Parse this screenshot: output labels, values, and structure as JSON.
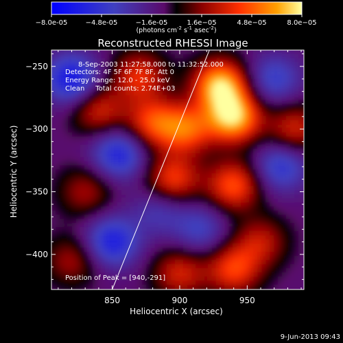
{
  "chart_data": {
    "type": "heatmap",
    "title": "Reconstructed RHESSI Image",
    "xlabel": "Heliocentric X (arcsec)",
    "ylabel": "Heliocentric Y (arcsec)",
    "xlim": [
      805,
      992
    ],
    "ylim": [
      -428,
      -237
    ],
    "xticks": [
      850,
      900,
      950
    ],
    "yticks": [
      -250,
      -300,
      -350,
      -400
    ],
    "colorbar": {
      "min": -8e-05,
      "max": 8e-05,
      "ticks": [
        "-8.0e-05",
        "-4.8e-05",
        "-1.6e-05",
        "1.6e-05",
        "4.8e-05",
        "8.0e-05"
      ],
      "unit_label": "(photons cm-2 s-1 asec-2)"
    },
    "annotations": [
      "8-Sep-2003 11:27:58.000 to 11:32:52.000",
      "Detectors: 4F 5F 6F 7F 8F, Att 0",
      "Energy Range: 12.0 - 25.0 keV",
      "Clean     Total counts: 2.74E+03"
    ],
    "peak_label": "Position of Peak = [940,-291]",
    "peak": [
      940,
      -291
    ],
    "limb_line": [
      [
        850,
        -428
      ],
      [
        922,
        -237
      ]
    ],
    "sources": [
      {
        "x": 930,
        "y": -265,
        "value": 8e-05
      },
      {
        "x": 940,
        "y": -291,
        "value": 8e-05
      },
      {
        "x": 905,
        "y": -300,
        "value": 5.5e-05
      },
      {
        "x": 880,
        "y": -295,
        "value": 5e-05
      },
      {
        "x": 870,
        "y": -258,
        "value": 4.5e-05
      },
      {
        "x": 840,
        "y": -285,
        "value": 4e-05
      },
      {
        "x": 895,
        "y": -340,
        "value": 5e-05
      },
      {
        "x": 940,
        "y": -345,
        "value": 5.5e-05
      },
      {
        "x": 985,
        "y": -300,
        "value": 4e-05
      },
      {
        "x": 960,
        "y": -390,
        "value": 3.5e-05
      },
      {
        "x": 830,
        "y": -350,
        "value": 3e-05
      },
      {
        "x": 900,
        "y": -415,
        "value": 4e-05
      },
      {
        "x": 940,
        "y": -412,
        "value": 5e-05
      },
      {
        "x": 820,
        "y": -405,
        "value": 3e-05
      },
      {
        "x": 855,
        "y": -320,
        "value": -4.8e-05
      },
      {
        "x": 820,
        "y": -260,
        "value": -5.5e-05
      },
      {
        "x": 850,
        "y": -390,
        "value": -5e-05
      },
      {
        "x": 970,
        "y": -260,
        "value": -3.5e-05
      },
      {
        "x": 975,
        "y": -330,
        "value": -4e-05
      },
      {
        "x": 915,
        "y": -380,
        "value": -3e-05
      },
      {
        "x": 885,
        "y": -365,
        "value": -2.5e-05
      }
    ]
  },
  "date_stamp": "9-Jun-2013 09:43"
}
